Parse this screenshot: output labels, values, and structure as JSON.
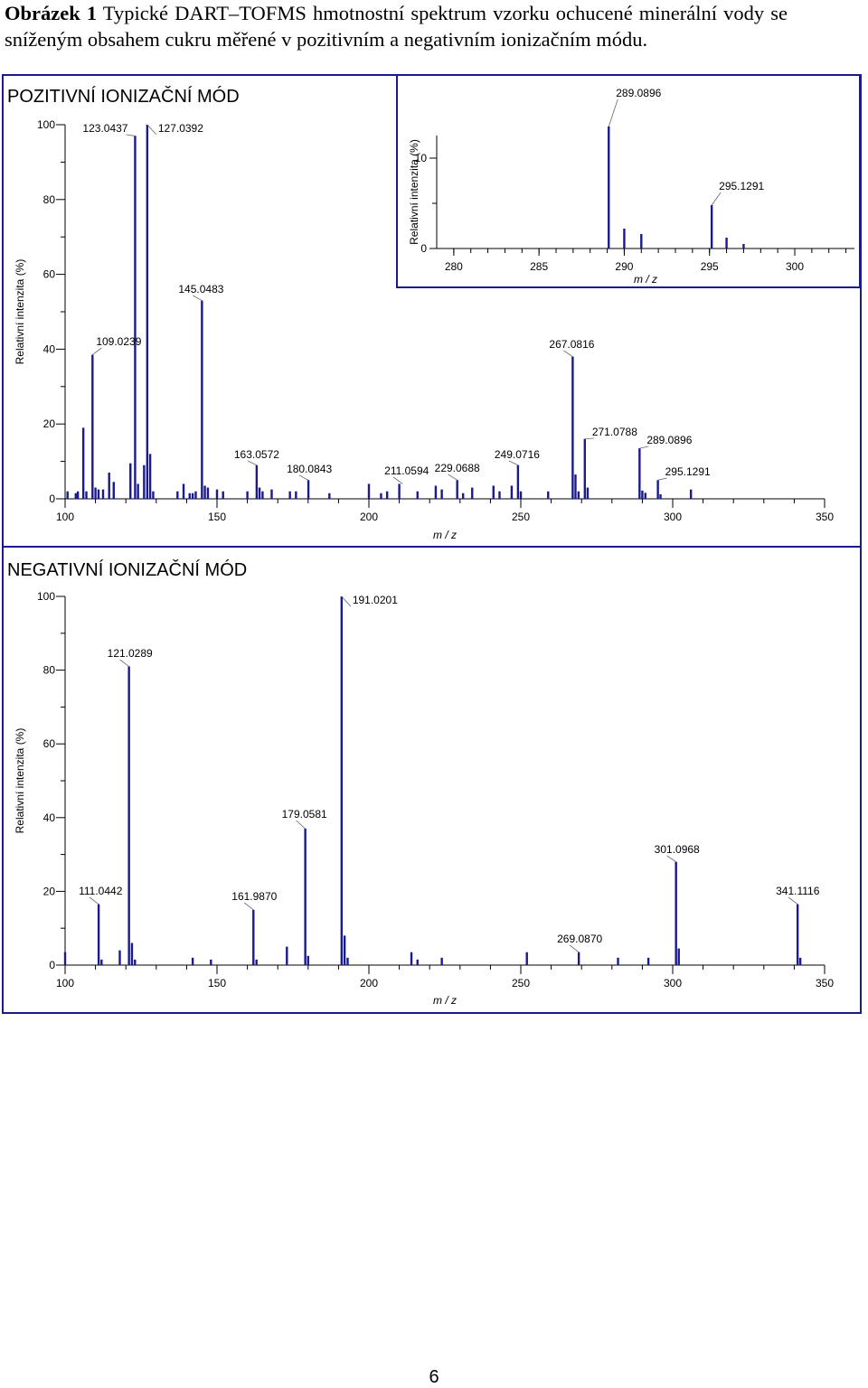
{
  "caption": {
    "label": "Obrázek 1",
    "text": " Typické DART–TOFMS hmotnostní spektrum vzorku ochucené minerální vody se sníženým obsahem cukru měřené v pozitivním a negativním ionizačním módu."
  },
  "page_number": "6",
  "colors": {
    "peak": "#1a1a8c",
    "frame": "#1a1a8c",
    "axis": "#000000",
    "text": "#000000"
  },
  "chart_data": [
    {
      "type": "bar",
      "title": "POZITIVNÍ IONIZAČNÍ MÓD",
      "xlabel": "m / z",
      "ylabel": "Relativní intenzita (%)",
      "xlim": [
        100,
        350
      ],
      "ylim": [
        0,
        100
      ],
      "xticks": [
        100,
        150,
        200,
        250,
        300,
        350
      ],
      "yticks": [
        0,
        20,
        40,
        60,
        80,
        100
      ],
      "peaks": [
        [
          98.8,
          18
        ],
        [
          100.8,
          2
        ],
        [
          103.5,
          1.5
        ],
        [
          104.2,
          2
        ],
        [
          106,
          19
        ],
        [
          107,
          2
        ],
        [
          109.0239,
          38.5
        ],
        [
          110,
          3
        ],
        [
          111,
          2.5
        ],
        [
          112.5,
          2.5
        ],
        [
          114.5,
          7
        ],
        [
          116,
          4.5
        ],
        [
          121.5,
          9.5
        ],
        [
          123.0437,
          97
        ],
        [
          124,
          4
        ],
        [
          126,
          9
        ],
        [
          127.0392,
          100
        ],
        [
          128,
          12
        ],
        [
          129,
          2
        ],
        [
          137,
          2
        ],
        [
          139,
          4
        ],
        [
          141,
          1.5
        ],
        [
          142,
          1.5
        ],
        [
          143,
          2
        ],
        [
          145.0483,
          53
        ],
        [
          146,
          3.5
        ],
        [
          147,
          3
        ],
        [
          150,
          2.5
        ],
        [
          152,
          2
        ],
        [
          160,
          2
        ],
        [
          163.0572,
          9
        ],
        [
          164,
          3
        ],
        [
          165,
          2
        ],
        [
          168,
          2.5
        ],
        [
          174,
          2
        ],
        [
          176,
          2
        ],
        [
          180.0843,
          5
        ],
        [
          187,
          1.5
        ],
        [
          200,
          4
        ],
        [
          204,
          1.5
        ],
        [
          206,
          2
        ],
        [
          210,
          4
        ],
        [
          216,
          2
        ],
        [
          222,
          3.5
        ],
        [
          224,
          2.5
        ],
        [
          229.0688,
          5
        ],
        [
          231,
          1.5
        ],
        [
          234,
          3
        ],
        [
          241,
          3.5
        ],
        [
          243,
          2
        ],
        [
          247,
          3.5
        ],
        [
          249.0716,
          9
        ],
        [
          250,
          2
        ],
        [
          259,
          2
        ],
        [
          267.0816,
          38
        ],
        [
          268,
          6.5
        ],
        [
          269,
          2
        ],
        [
          271.0788,
          16
        ],
        [
          272,
          3
        ],
        [
          289.0896,
          13.5
        ],
        [
          290,
          2.2
        ],
        [
          291,
          1.6
        ],
        [
          295.1291,
          5
        ],
        [
          296,
          1.2
        ],
        [
          306,
          2.5
        ]
      ],
      "annotations": [
        {
          "label": "123.0437",
          "mz": 123.0437,
          "y": 97
        },
        {
          "label": "127.0392",
          "mz": 127.0392,
          "y": 100
        },
        {
          "label": "145.0483",
          "mz": 145.0483,
          "y": 53
        },
        {
          "label": "109.0239",
          "mz": 109.0239,
          "y": 38.5
        },
        {
          "label": "267.0816",
          "mz": 267.0816,
          "y": 38
        },
        {
          "label": "271.0788",
          "mz": 271.0788,
          "y": 16
        },
        {
          "label": "289.0896",
          "mz": 289.0896,
          "y": 13.5
        },
        {
          "label": "249.0716",
          "mz": 249.0716,
          "y": 9
        },
        {
          "label": "163.0572",
          "mz": 163.0572,
          "y": 9
        },
        {
          "label": "180.0843",
          "mz": 180.0843,
          "y": 5
        },
        {
          "label": "211.0594",
          "mz": 211.0594,
          "y": 4
        },
        {
          "label": "229.0688",
          "mz": 229.0688,
          "y": 5
        },
        {
          "label": "295.1291",
          "mz": 295.1291,
          "y": 5
        }
      ]
    },
    {
      "type": "bar",
      "title": "",
      "xlabel": "m / z",
      "ylabel": "Relativní intenzita (%)",
      "xlim": [
        279,
        303.5
      ],
      "ylim": [
        0,
        12.5
      ],
      "xticks": [
        280,
        285,
        290,
        295,
        300
      ],
      "yticks": [
        0,
        10
      ],
      "peaks": [
        [
          289.0896,
          13.5
        ],
        [
          290,
          2.2
        ],
        [
          291,
          1.6
        ],
        [
          295.1291,
          4.8
        ],
        [
          296,
          1.2
        ],
        [
          297,
          0.5
        ]
      ],
      "annotations": [
        {
          "label": "289.0896",
          "mz": 289.0896,
          "y": 13.5
        },
        {
          "label": "295.1291",
          "mz": 295.1291,
          "y": 4.8
        }
      ]
    },
    {
      "type": "bar",
      "title": "NEGATIVNÍ IONIZAČNÍ MÓD",
      "xlabel": "m / z",
      "ylabel": "Relativní intenzita (%)",
      "xlim": [
        100,
        350
      ],
      "ylim": [
        0,
        100
      ],
      "xticks": [
        100,
        150,
        200,
        250,
        300,
        350
      ],
      "yticks": [
        0,
        20,
        40,
        60,
        80,
        100
      ],
      "peaks": [
        [
          100,
          3.5
        ],
        [
          111.0442,
          16.5
        ],
        [
          112,
          1.5
        ],
        [
          118,
          4
        ],
        [
          121.0289,
          81
        ],
        [
          122,
          6
        ],
        [
          123,
          1.5
        ],
        [
          142,
          2
        ],
        [
          148,
          1.5
        ],
        [
          161.987,
          15
        ],
        [
          163,
          1.5
        ],
        [
          173,
          5
        ],
        [
          179.0581,
          37
        ],
        [
          180,
          2.5
        ],
        [
          191.0201,
          100
        ],
        [
          192,
          8
        ],
        [
          193,
          2
        ],
        [
          214,
          3.5
        ],
        [
          216,
          1.5
        ],
        [
          224,
          2
        ],
        [
          252,
          3.5
        ],
        [
          269.087,
          3.5
        ],
        [
          282,
          2
        ],
        [
          292,
          2
        ],
        [
          301.0968,
          28
        ],
        [
          302,
          4.5
        ],
        [
          341.1116,
          16.5
        ],
        [
          342,
          2
        ]
      ],
      "annotations": [
        {
          "label": "191.0201",
          "mz": 191.0201,
          "y": 100
        },
        {
          "label": "121.0289",
          "mz": 121.0289,
          "y": 81
        },
        {
          "label": "179.0581",
          "mz": 179.0581,
          "y": 37
        },
        {
          "label": "301.0968",
          "mz": 301.0968,
          "y": 28
        },
        {
          "label": "111.0442",
          "mz": 111.0442,
          "y": 16.5
        },
        {
          "label": "161.9870",
          "mz": 161.987,
          "y": 15
        },
        {
          "label": "341.1116",
          "mz": 341.1116,
          "y": 16.5
        },
        {
          "label": "269.0870",
          "mz": 269.087,
          "y": 3.5
        }
      ]
    }
  ]
}
